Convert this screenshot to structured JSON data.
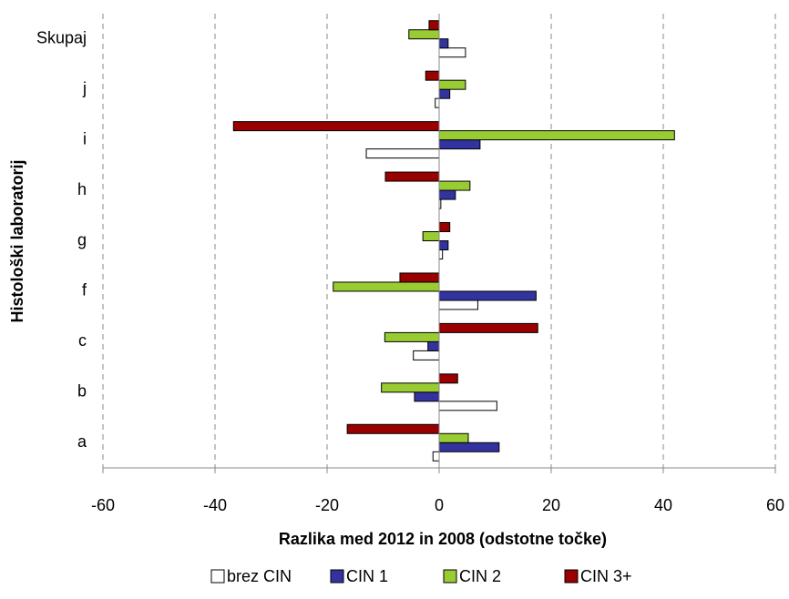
{
  "chart_data": {
    "type": "hbar",
    "x_label": "Razlika med 2012 in 2008 (odstotne točke)",
    "y_label": "Histološki laboratorij",
    "categories": [
      "a",
      "b",
      "c",
      "f",
      "g",
      "h",
      "i",
      "j",
      "Skupaj"
    ],
    "series": [
      {
        "name": "brez CIN",
        "color": "#ffffff",
        "values": [
          -1.1,
          10.3,
          -4.6,
          6.9,
          0.6,
          0.3,
          -13.0,
          -0.7,
          4.7
        ]
      },
      {
        "name": "CIN 1",
        "color": "#3333a0",
        "values": [
          10.7,
          -4.4,
          -2.0,
          17.3,
          1.6,
          2.9,
          7.3,
          1.9,
          1.6
        ]
      },
      {
        "name": "CIN 2",
        "color": "#99cc33",
        "values": [
          5.2,
          -10.3,
          -9.7,
          -18.9,
          -2.9,
          5.5,
          42.0,
          4.7,
          -5.4
        ]
      },
      {
        "name": "CIN 3+",
        "color": "#990000",
        "values": [
          -16.4,
          3.3,
          17.6,
          -7.0,
          1.9,
          -9.6,
          -36.7,
          -2.4,
          -1.8
        ]
      }
    ],
    "xlim": [
      -60,
      60
    ],
    "xticks": [
      -60,
      -40,
      -20,
      0,
      20,
      40,
      60
    ],
    "grid": true
  }
}
